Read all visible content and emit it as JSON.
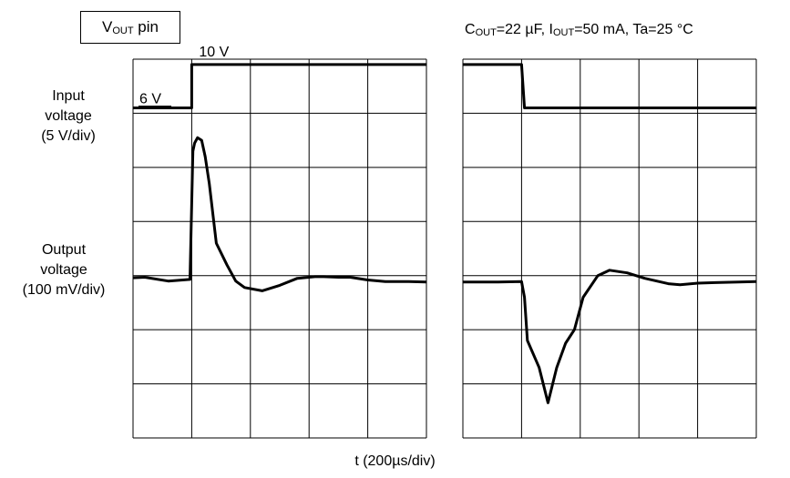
{
  "pin_box": {
    "main": "V",
    "sub": "OUT",
    "suffix": " pin"
  },
  "conditions": {
    "cout_main": "C",
    "cout_sub": "OUT",
    "cout_value": "=22 µF,  ",
    "iout_main": "I",
    "iout_sub": "OUT",
    "iout_value": "=50 mA,  Ta=25 °C"
  },
  "y_labels": {
    "input": [
      "Input",
      "voltage",
      "(5 V/div)"
    ],
    "output": [
      "Output",
      "voltage",
      "(100 mV/div)"
    ]
  },
  "x_label": "t (200µs/div)",
  "chart_data": [
    {
      "type": "line",
      "xlabel": "t (200µs/div)",
      "xlim": [
        0,
        5
      ],
      "ylim": [
        0,
        7
      ],
      "grid": true,
      "series": [
        {
          "x": [
            0,
            1,
            1,
            5
          ],
          "y": [
            6.1,
            6.1,
            6.9,
            6.9
          ]
        },
        {
          "x": [
            0,
            0.2,
            0.6,
            0.97,
            1.02,
            1.05,
            1.1,
            1.17,
            1.23,
            1.3,
            1.42,
            1.6,
            1.75,
            1.9,
            2.2,
            2.5,
            2.8,
            3.1,
            3.25,
            3.5,
            3.7,
            4.0,
            4.3,
            4.7,
            5
          ],
          "y": [
            2.96,
            2.97,
            2.9,
            2.93,
            5.3,
            5.45,
            5.55,
            5.5,
            5.2,
            4.7,
            3.6,
            3.2,
            2.9,
            2.78,
            2.72,
            2.82,
            2.95,
            2.98,
            2.98,
            2.97,
            2.97,
            2.92,
            2.89,
            2.89,
            2.88
          ]
        }
      ],
      "annotations": [
        "10 V",
        "6 V"
      ]
    },
    {
      "type": "line",
      "xlim": [
        0,
        5
      ],
      "ylim": [
        0,
        7
      ],
      "grid": true,
      "series": [
        {
          "x": [
            0,
            1.0,
            1.05,
            5
          ],
          "y": [
            6.9,
            6.9,
            6.1,
            6.1
          ]
        },
        {
          "x": [
            0,
            0.6,
            1.0,
            1.05,
            1.1,
            1.3,
            1.45,
            1.6,
            1.75,
            1.9,
            2.05,
            2.3,
            2.5,
            2.8,
            3.1,
            3.5,
            3.7,
            4.0,
            4.3,
            4.7,
            5
          ],
          "y": [
            2.88,
            2.88,
            2.89,
            2.6,
            1.8,
            1.3,
            0.65,
            1.3,
            1.75,
            2.0,
            2.6,
            3.0,
            3.1,
            3.05,
            2.95,
            2.85,
            2.83,
            2.86,
            2.87,
            2.88,
            2.89
          ]
        }
      ]
    }
  ]
}
